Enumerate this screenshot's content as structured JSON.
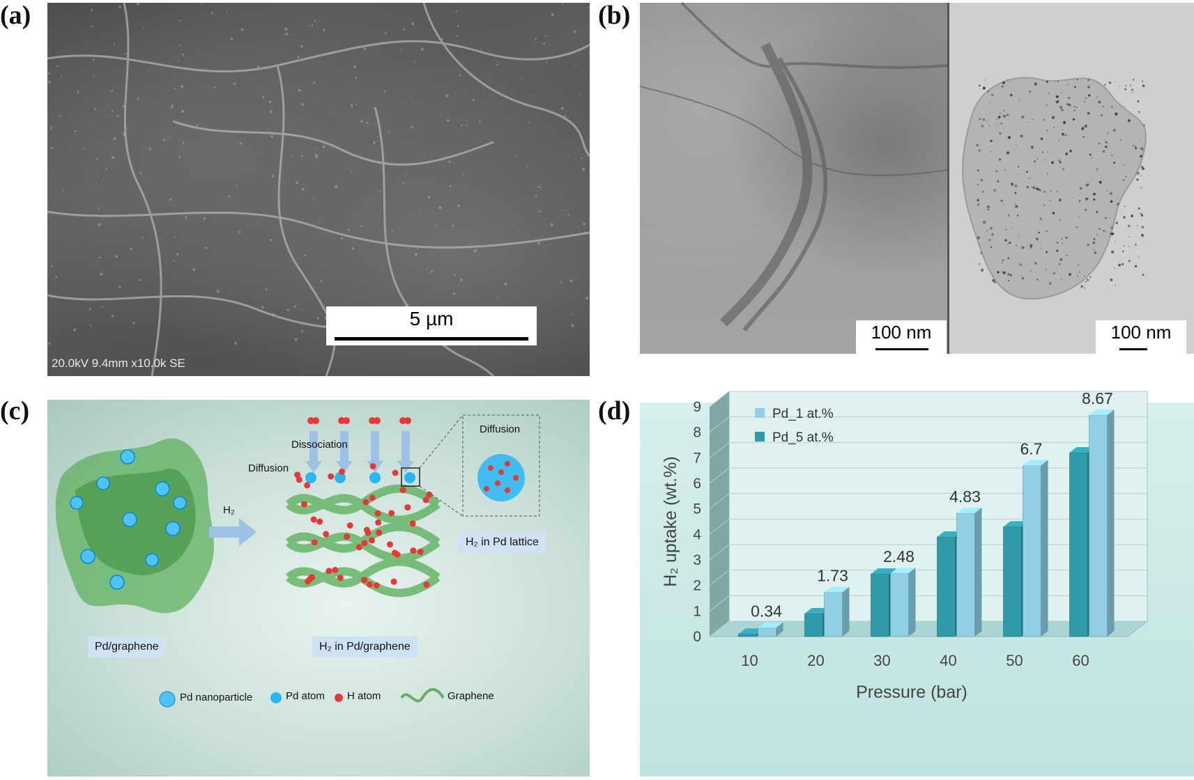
{
  "panels": {
    "a": {
      "letter": "(a)",
      "meta": "20.0kV 9.4mm x10.0k SE",
      "scale": "5 µm"
    },
    "b": {
      "letter": "(b)",
      "scale_left": "100 nm",
      "scale_right": "100 nm"
    },
    "c": {
      "letter": "(c)",
      "h2_arrow_label": "H₂",
      "dissociation": "Dissociation",
      "diffusion_left": "Diffusion",
      "diffusion_inset": "Diffusion",
      "caption_left": "Pd/graphene",
      "caption_mid": "H₂ in Pd/graphene",
      "caption_right": "H₂ in Pd lattice",
      "legend": [
        "Pd nanoparticle",
        "Pd atom",
        "H atom",
        "Graphene"
      ]
    },
    "d": {
      "letter": "(d)"
    }
  },
  "colors": {
    "series1": "#8fd0e4",
    "series2": "#2f9aa8",
    "graphene": "#4caf50",
    "h_atom": "#e53935",
    "pd": "#29b6f6"
  },
  "chart_data": {
    "type": "bar",
    "categories": [
      "10",
      "20",
      "30",
      "40",
      "50",
      "60"
    ],
    "series": [
      {
        "name": "Pd_1 at.%",
        "values": [
          0.34,
          1.73,
          2.48,
          4.83,
          6.7,
          8.67
        ]
      },
      {
        "name": "Pd_5 at.%",
        "values": [
          0.1,
          0.9,
          2.45,
          3.9,
          4.3,
          7.2
        ]
      }
    ],
    "data_labels": [
      "0.34",
      "1.73",
      "2.48",
      "4.83",
      "6.7",
      "8.67"
    ],
    "xlabel": "Pressure (bar)",
    "ylabel": "H₂ uptake (wt.%)",
    "ylim": [
      0,
      9
    ],
    "yticks": [
      "0",
      "1",
      "2",
      "3",
      "4",
      "5",
      "6",
      "7",
      "8",
      "9"
    ],
    "grid": true,
    "legend_position": "top-left",
    "style": "3d"
  }
}
